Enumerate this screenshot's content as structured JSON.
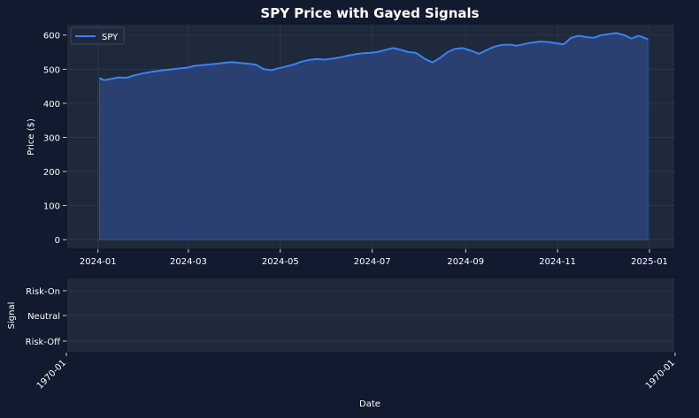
{
  "figure": {
    "background": "#111a2e",
    "panel_background": "#1e293b",
    "grid_color": "#2c3a52",
    "text_color": "#ffffff"
  },
  "chart_data": [
    {
      "type": "area",
      "title": "SPY Price with Gayed Signals",
      "xlabel": "",
      "ylabel": "Price ($)",
      "ylim": [
        -28,
        633
      ],
      "xlim": [
        "2023-12-11",
        "2025-01-18"
      ],
      "grid": true,
      "legend_position": "upper-left",
      "yticks": [
        0,
        100,
        200,
        300,
        400,
        500,
        600
      ],
      "xticks": [
        "2024-01-01",
        "2024-03-01",
        "2024-05-01",
        "2024-07-01",
        "2024-09-01",
        "2024-11-01",
        "2025-01-01"
      ],
      "xtick_labels": [
        "2024-01",
        "2024-03",
        "2024-05",
        "2024-07",
        "2024-09",
        "2024-11",
        "2025-01"
      ],
      "series": [
        {
          "name": "SPY",
          "color": "#3b82f6",
          "fill_color": "#2a4377",
          "x": [
            "2024-01-02",
            "2024-01-05",
            "2024-01-10",
            "2024-01-15",
            "2024-01-20",
            "2024-01-25",
            "2024-01-30",
            "2024-02-05",
            "2024-02-10",
            "2024-02-15",
            "2024-02-20",
            "2024-02-25",
            "2024-03-01",
            "2024-03-05",
            "2024-03-10",
            "2024-03-15",
            "2024-03-20",
            "2024-03-25",
            "2024-03-30",
            "2024-04-05",
            "2024-04-10",
            "2024-04-15",
            "2024-04-20",
            "2024-04-25",
            "2024-04-30",
            "2024-05-05",
            "2024-05-10",
            "2024-05-15",
            "2024-05-20",
            "2024-05-25",
            "2024-05-30",
            "2024-06-05",
            "2024-06-10",
            "2024-06-15",
            "2024-06-20",
            "2024-06-25",
            "2024-06-30",
            "2024-07-05",
            "2024-07-10",
            "2024-07-15",
            "2024-07-20",
            "2024-07-25",
            "2024-07-30",
            "2024-08-05",
            "2024-08-10",
            "2024-08-15",
            "2024-08-20",
            "2024-08-25",
            "2024-08-30",
            "2024-09-05",
            "2024-09-10",
            "2024-09-15",
            "2024-09-20",
            "2024-09-25",
            "2024-09-30",
            "2024-10-05",
            "2024-10-10",
            "2024-10-15",
            "2024-10-20",
            "2024-10-25",
            "2024-10-30",
            "2024-11-05",
            "2024-11-10",
            "2024-11-15",
            "2024-11-20",
            "2024-11-25",
            "2024-11-30",
            "2024-12-05",
            "2024-12-10",
            "2024-12-15",
            "2024-12-20",
            "2024-12-25",
            "2024-12-31"
          ],
          "values": [
            474,
            468,
            472,
            476,
            475,
            482,
            487,
            492,
            495,
            498,
            500,
            503,
            505,
            510,
            512,
            514,
            516,
            519,
            521,
            518,
            516,
            513,
            500,
            497,
            503,
            508,
            514,
            522,
            527,
            530,
            528,
            531,
            535,
            540,
            544,
            547,
            548,
            551,
            557,
            562,
            557,
            550,
            548,
            530,
            520,
            533,
            550,
            560,
            562,
            554,
            545,
            556,
            566,
            571,
            572,
            569,
            574,
            578,
            581,
            580,
            577,
            573,
            592,
            598,
            594,
            592,
            600,
            603,
            606,
            600,
            590,
            598,
            588
          ]
        }
      ]
    },
    {
      "type": "line",
      "title": "",
      "xlabel": "Date",
      "ylabel": "Signal",
      "grid": true,
      "ytick_labels": [
        "Risk-On",
        "Neutral",
        "Risk-Off"
      ],
      "xtick_labels": [
        "1970-01",
        "1970-01"
      ],
      "series": []
    }
  ]
}
